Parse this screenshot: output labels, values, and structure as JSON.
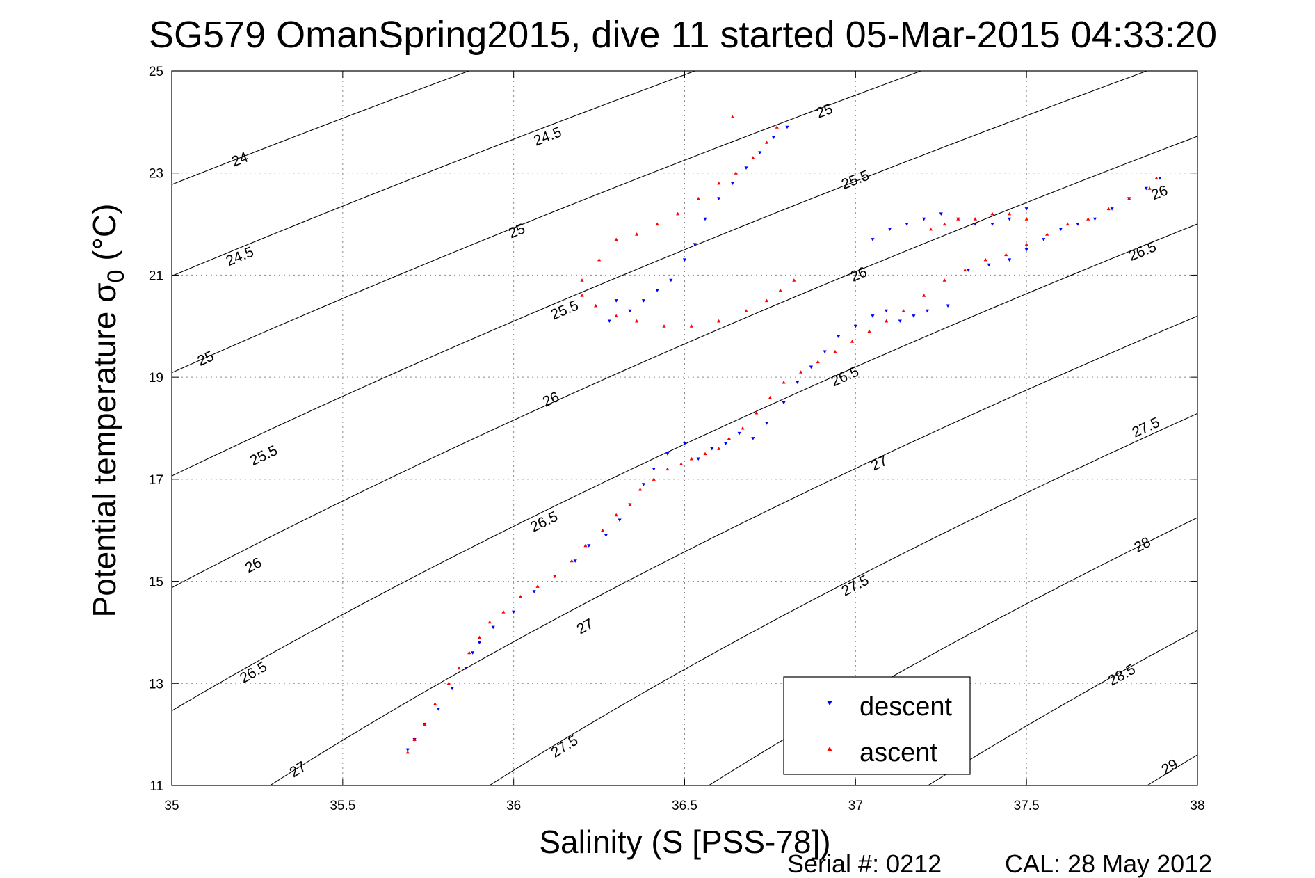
{
  "chart_data": {
    "type": "scatter",
    "title": "SG579 OmanSpring2015, dive 11 started 05-Mar-2015 04:33:20",
    "xlabel": "Salinity (S [PSS-78])",
    "ylabel_main": "Potential temperature σ",
    "ylabel_sub": "0",
    "ylabel_unit": " (°C)",
    "xlim": [
      35,
      38
    ],
    "ylim": [
      11,
      25
    ],
    "x_ticks": [
      35,
      35.5,
      36,
      36.5,
      37,
      37.5,
      38
    ],
    "x_tick_labels": [
      "35",
      "35.5",
      "36",
      "36.5",
      "37",
      "37.5",
      "38"
    ],
    "y_ticks": [
      11,
      13,
      15,
      17,
      19,
      21,
      23,
      25
    ],
    "y_tick_labels": [
      "11",
      "13",
      "15",
      "17",
      "19",
      "21",
      "23",
      "25"
    ],
    "grid": true,
    "legend_position": "bottom-right",
    "contour_levels": [
      "24",
      "24.5",
      "25",
      "25.5",
      "26",
      "26.5",
      "27",
      "27.5",
      "28",
      "28.5",
      "29"
    ],
    "contour_labels": [
      {
        "text": "24",
        "s": 35.2,
        "t": 23.25
      },
      {
        "text": "24.5",
        "s": 35.2,
        "t": 21.35
      },
      {
        "text": "25",
        "s": 35.1,
        "t": 19.35
      },
      {
        "text": "25.5",
        "s": 35.27,
        "t": 17.45
      },
      {
        "text": "26",
        "s": 35.24,
        "t": 15.3
      },
      {
        "text": "26.5",
        "s": 35.24,
        "t": 13.2
      },
      {
        "text": "27",
        "s": 35.37,
        "t": 11.3
      },
      {
        "text": "24.5",
        "s": 36.1,
        "t": 23.7
      },
      {
        "text": "25",
        "s": 36.01,
        "t": 21.85
      },
      {
        "text": "25.5",
        "s": 36.15,
        "t": 20.3
      },
      {
        "text": "26",
        "s": 36.11,
        "t": 18.55
      },
      {
        "text": "26.5",
        "s": 36.09,
        "t": 16.15
      },
      {
        "text": "27",
        "s": 36.21,
        "t": 14.1
      },
      {
        "text": "27.5",
        "s": 36.15,
        "t": 11.75
      },
      {
        "text": "25",
        "s": 36.91,
        "t": 24.2
      },
      {
        "text": "25.5",
        "s": 37.0,
        "t": 22.85
      },
      {
        "text": "26",
        "s": 37.01,
        "t": 21.0
      },
      {
        "text": "26.5",
        "s": 36.97,
        "t": 19.0
      },
      {
        "text": "27",
        "s": 37.07,
        "t": 17.3
      },
      {
        "text": "27.5",
        "s": 37.0,
        "t": 14.9
      },
      {
        "text": "26",
        "s": 37.89,
        "t": 22.6
      },
      {
        "text": "26.5",
        "s": 37.84,
        "t": 21.45
      },
      {
        "text": "27.5",
        "s": 37.85,
        "t": 18.0
      },
      {
        "text": "28",
        "s": 37.84,
        "t": 15.7
      },
      {
        "text": "28.5",
        "s": 37.78,
        "t": 13.15
      },
      {
        "text": "29",
        "s": 37.92,
        "t": 11.35
      }
    ],
    "series": [
      {
        "name": "descent",
        "marker": "triangle-down",
        "color": "#0000ff",
        "x": [
          35.69,
          35.71,
          35.74,
          35.78,
          35.82,
          35.86,
          35.88,
          35.9,
          35.94,
          36.0,
          36.06,
          36.12,
          36.18,
          36.22,
          36.27,
          36.31,
          36.34,
          36.38,
          36.41,
          36.45,
          36.5,
          36.54,
          36.58,
          36.62,
          36.66,
          36.7,
          36.74,
          36.79,
          36.83,
          36.87,
          36.91,
          36.95,
          37.0,
          37.05,
          37.09,
          37.13,
          37.17,
          37.21,
          37.27,
          37.33,
          37.39,
          37.45,
          37.5,
          37.55,
          37.6,
          37.65,
          37.7,
          37.75,
          37.8,
          37.85,
          37.89,
          37.05,
          37.1,
          37.15,
          37.2,
          37.25,
          37.3,
          37.35,
          37.4,
          37.45,
          37.5,
          36.28,
          36.3,
          36.34,
          36.38,
          36.42,
          36.46,
          36.5,
          36.53,
          36.56,
          36.6,
          36.64,
          36.68,
          36.72,
          36.76,
          36.8
        ],
        "y": [
          11.7,
          11.9,
          12.2,
          12.5,
          12.9,
          13.3,
          13.6,
          13.8,
          14.1,
          14.4,
          14.8,
          15.1,
          15.4,
          15.7,
          15.9,
          16.2,
          16.5,
          16.9,
          17.2,
          17.5,
          17.7,
          17.4,
          17.6,
          17.7,
          17.9,
          17.8,
          18.1,
          18.5,
          18.9,
          19.2,
          19.5,
          19.8,
          20.0,
          20.2,
          20.3,
          20.1,
          20.2,
          20.3,
          20.4,
          21.1,
          21.2,
          21.3,
          21.5,
          21.7,
          21.9,
          22.0,
          22.1,
          22.3,
          22.5,
          22.7,
          22.9,
          21.7,
          21.9,
          22.0,
          22.1,
          22.2,
          22.1,
          22.0,
          22.0,
          22.1,
          22.3,
          20.1,
          20.5,
          20.3,
          20.5,
          20.7,
          20.9,
          21.3,
          21.6,
          22.1,
          22.5,
          22.8,
          23.1,
          23.4,
          23.7,
          23.9
        ]
      },
      {
        "name": "ascent",
        "marker": "triangle-up",
        "color": "#ff0000",
        "x": [
          35.69,
          35.71,
          35.74,
          35.77,
          35.81,
          35.84,
          35.87,
          35.9,
          35.93,
          35.97,
          36.02,
          36.07,
          36.12,
          36.17,
          36.21,
          36.26,
          36.3,
          36.34,
          36.37,
          36.41,
          36.45,
          36.49,
          36.52,
          36.56,
          36.6,
          36.63,
          36.67,
          36.71,
          36.75,
          36.79,
          36.84,
          36.89,
          36.94,
          36.99,
          37.04,
          37.09,
          37.14,
          37.2,
          37.26,
          37.32,
          37.38,
          37.44,
          37.5,
          37.56,
          37.62,
          37.68,
          37.74,
          37.8,
          37.86,
          37.88,
          37.22,
          37.26,
          37.3,
          37.35,
          37.4,
          37.45,
          37.5,
          36.2,
          36.24,
          36.3,
          36.36,
          36.44,
          36.52,
          36.6,
          36.68,
          36.74,
          36.78,
          36.82,
          36.2,
          36.25,
          36.3,
          36.36,
          36.42,
          36.48,
          36.54,
          36.6,
          36.65,
          36.7,
          36.74,
          36.77,
          36.64
        ],
        "y": [
          11.65,
          11.9,
          12.2,
          12.6,
          13.0,
          13.3,
          13.6,
          13.9,
          14.2,
          14.4,
          14.7,
          14.9,
          15.1,
          15.4,
          15.7,
          16.0,
          16.3,
          16.5,
          16.8,
          17.0,
          17.2,
          17.3,
          17.4,
          17.5,
          17.6,
          17.8,
          18.0,
          18.3,
          18.6,
          18.9,
          19.1,
          19.3,
          19.5,
          19.7,
          19.9,
          20.1,
          20.3,
          20.6,
          20.9,
          21.1,
          21.3,
          21.4,
          21.6,
          21.8,
          22.0,
          22.1,
          22.3,
          22.5,
          22.7,
          22.9,
          21.9,
          22.0,
          22.1,
          22.1,
          22.2,
          22.2,
          22.1,
          20.6,
          20.4,
          20.2,
          20.1,
          20.0,
          20.0,
          20.1,
          20.3,
          20.5,
          20.7,
          20.9,
          20.9,
          21.3,
          21.7,
          21.8,
          22.0,
          22.2,
          22.5,
          22.8,
          23.0,
          23.3,
          23.6,
          23.9,
          24.1
        ]
      }
    ]
  },
  "footer": {
    "serial": "Serial #: 0212",
    "cal": "CAL: 28 May 2012"
  }
}
